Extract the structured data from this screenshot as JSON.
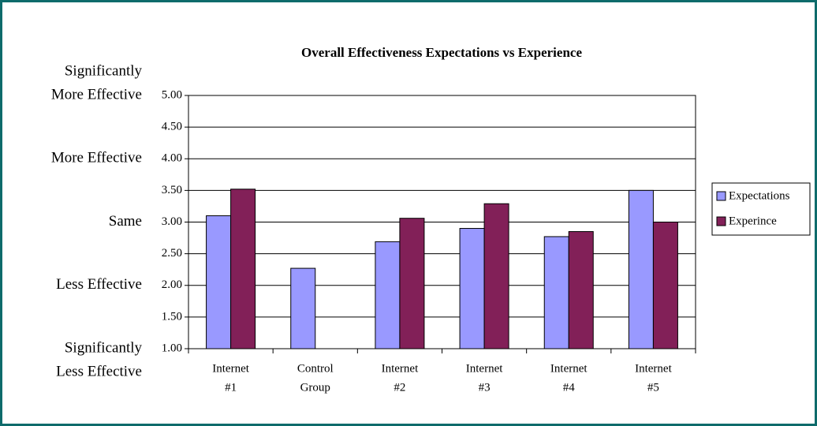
{
  "chart_data": {
    "type": "bar",
    "title": "Overall Effectiveness Expectations vs Experience",
    "categories": [
      [
        "Internet",
        "#1"
      ],
      [
        "Control",
        "Group"
      ],
      [
        "Internet",
        "#2"
      ],
      [
        "Internet",
        "#3"
      ],
      [
        "Internet",
        "#4"
      ],
      [
        "Internet",
        "#5"
      ]
    ],
    "series": [
      {
        "name": "Expectations",
        "color": "#9999ff",
        "values": [
          3.1,
          2.27,
          2.69,
          2.9,
          2.77,
          3.5
        ]
      },
      {
        "name": "Experince",
        "color": "#822058",
        "values": [
          3.52,
          null,
          3.06,
          3.29,
          2.85,
          3.0
        ]
      }
    ],
    "ylim": [
      1,
      5
    ],
    "yticks": [
      {
        "value": 1,
        "label": "1.00"
      },
      {
        "value": 1.5,
        "label": "1.50"
      },
      {
        "value": 2,
        "label": "2.00"
      },
      {
        "value": 2.5,
        "label": "2.50"
      },
      {
        "value": 3,
        "label": "3.00"
      },
      {
        "value": 3.5,
        "label": "3.50"
      },
      {
        "value": 4,
        "label": "4.00"
      },
      {
        "value": 4.5,
        "label": "4.50"
      },
      {
        "value": 5,
        "label": "5.00"
      }
    ],
    "y_annotations": [
      {
        "value": 5,
        "lines": [
          "Significantly",
          "More Effective"
        ]
      },
      {
        "value": 4,
        "lines": [
          "More  Effective"
        ]
      },
      {
        "value": 3,
        "lines": [
          "Same"
        ]
      },
      {
        "value": 2,
        "lines": [
          "Less Effective"
        ]
      },
      {
        "value": 1,
        "lines": [
          "Significantly",
          "Less Effective"
        ]
      }
    ],
    "grid": true,
    "legend": "right"
  }
}
